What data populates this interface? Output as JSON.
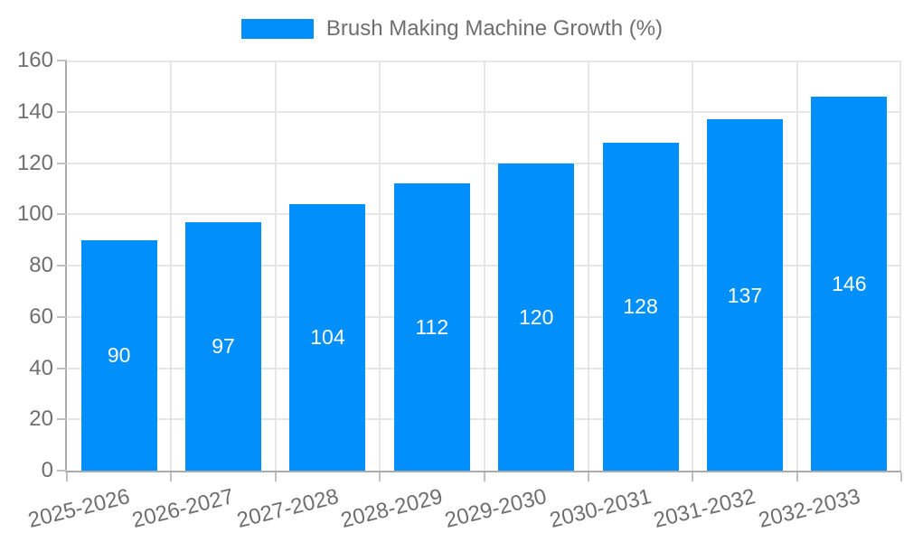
{
  "chart_data": {
    "type": "bar",
    "title": "Brush Making Machine Growth (%)",
    "categories": [
      "2025-2026",
      "2026-2027",
      "2027-2028",
      "2028-2029",
      "2029-2030",
      "2030-2031",
      "2031-2032",
      "2032-2033"
    ],
    "values": [
      90,
      97,
      104,
      112,
      120,
      128,
      137,
      146
    ],
    "xlabel": "",
    "ylabel": "",
    "ylim": [
      0,
      160
    ],
    "ytick_step": 20,
    "ytick_labels": [
      "0",
      "20",
      "40",
      "60",
      "80",
      "100",
      "120",
      "140",
      "160"
    ],
    "legend_position": "top",
    "grid": true,
    "bar_color": "#008FFB",
    "value_label_color": "#ffffff",
    "axis_text_color": "#6f6f6f"
  }
}
